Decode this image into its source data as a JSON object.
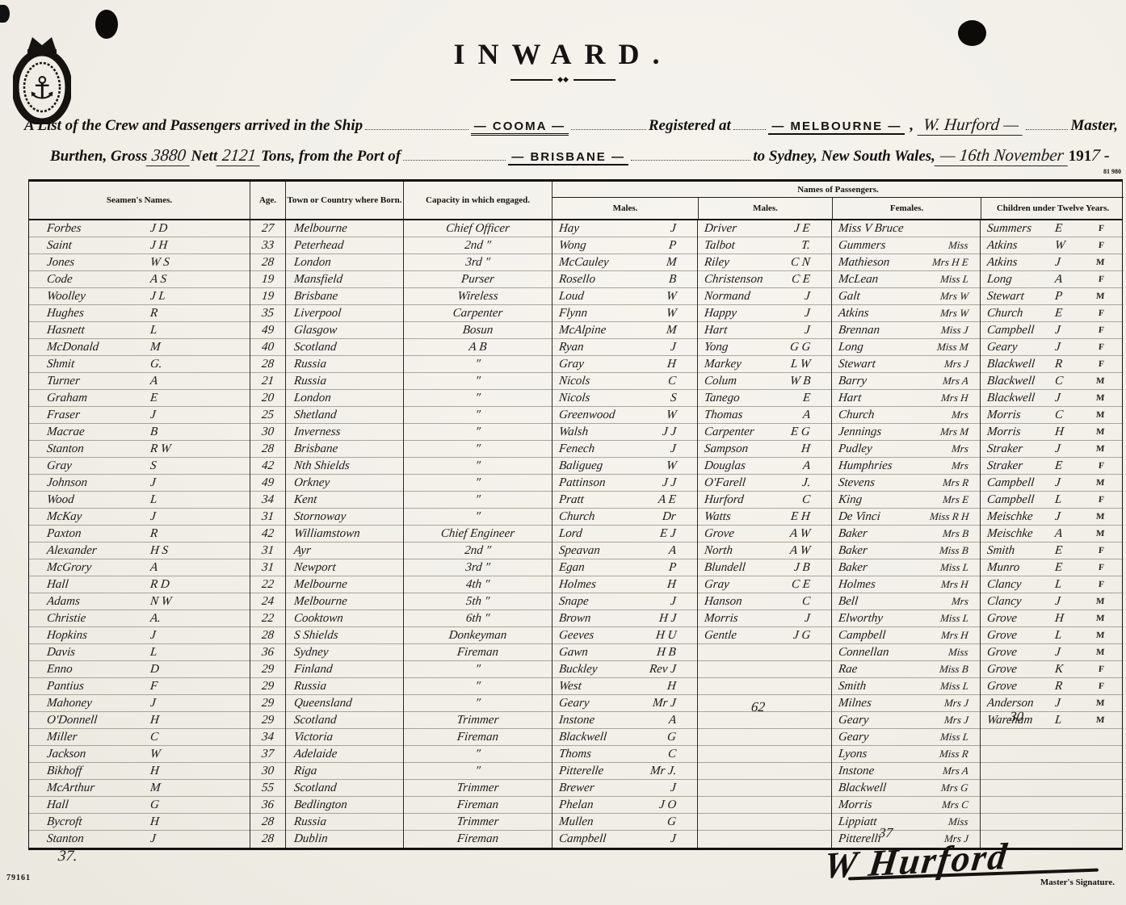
{
  "page": {
    "title": "INWARD.",
    "plate_number": "81 980",
    "form_number": "79161",
    "intro": {
      "line1_prefix": "A List of the Crew and Passengers arrived in the Ship",
      "ship_name": "— COOMA —",
      "registered_at_label": "Registered at",
      "registered_at_value": "— MELBOURNE —",
      "separator_comma": ",",
      "master_name": "W. Hurford —",
      "master_label": "Master,",
      "line2_prefix": "Burthen, Gross",
      "gross_value": "3880",
      "nett_label": "Nett",
      "nett_value": "2121",
      "line2_mid": "Tons, from the Port of",
      "port_value": "— BRISBANE —",
      "line2_dest": "to Sydney, New South Wales,",
      "date_value": "— 16th November",
      "year_printed": "191",
      "year_written": "7 -"
    }
  },
  "table": {
    "headers": {
      "seamen": "Seamen's Names.",
      "age": "Age.",
      "town": "Town or Country where Born.",
      "capacity": "Capacity in which engaged.",
      "passengers_banner": "Names of Passengers.",
      "passenger_sub": [
        "Males.",
        "Males.",
        "Females.",
        "Children under Twelve Years."
      ]
    },
    "crew": [
      {
        "name": "Forbes",
        "initials": "J D",
        "age": "27",
        "born": "Melbourne",
        "capacity": "Chief Officer"
      },
      {
        "name": "Saint",
        "initials": "J H",
        "age": "33",
        "born": "Peterhead",
        "capacity": "2nd ″"
      },
      {
        "name": "Jones",
        "initials": "W S",
        "age": "28",
        "born": "London",
        "capacity": "3rd ″"
      },
      {
        "name": "Code",
        "initials": "A S",
        "age": "19",
        "born": "Mansfield",
        "capacity": "Purser"
      },
      {
        "name": "Woolley",
        "initials": "J L",
        "age": "19",
        "born": "Brisbane",
        "capacity": "Wireless"
      },
      {
        "name": "Hughes",
        "initials": "R",
        "age": "35",
        "born": "Liverpool",
        "capacity": "Carpenter"
      },
      {
        "name": "Hasnett",
        "initials": "L",
        "age": "49",
        "born": "Glasgow",
        "capacity": "Bosun"
      },
      {
        "name": "McDonald",
        "initials": "M",
        "age": "40",
        "born": "Scotland",
        "capacity": "A B"
      },
      {
        "name": "Shmit",
        "initials": "G.",
        "age": "28",
        "born": "Russia",
        "capacity": "″"
      },
      {
        "name": "Turner",
        "initials": "A",
        "age": "21",
        "born": "Russia",
        "capacity": "″"
      },
      {
        "name": "Graham",
        "initials": "E",
        "age": "20",
        "born": "London",
        "capacity": "″"
      },
      {
        "name": "Fraser",
        "initials": "J",
        "age": "25",
        "born": "Shetland",
        "capacity": "″"
      },
      {
        "name": "Macrae",
        "initials": "B",
        "age": "30",
        "born": "Inverness",
        "capacity": "″"
      },
      {
        "name": "Stanton",
        "initials": "R W",
        "age": "28",
        "born": "Brisbane",
        "capacity": "″"
      },
      {
        "name": "Gray",
        "initials": "S",
        "age": "42",
        "born": "Nth Shields",
        "capacity": "″"
      },
      {
        "name": "Johnson",
        "initials": "J",
        "age": "49",
        "born": "Orkney",
        "capacity": "″"
      },
      {
        "name": "Wood",
        "initials": "L",
        "age": "34",
        "born": "Kent",
        "capacity": "″"
      },
      {
        "name": "McKay",
        "initials": "J",
        "age": "31",
        "born": "Stornoway",
        "capacity": "″"
      },
      {
        "name": "Paxton",
        "initials": "R",
        "age": "42",
        "born": "Williamstown",
        "capacity": "Chief Engineer"
      },
      {
        "name": "Alexander",
        "initials": "H S",
        "age": "31",
        "born": "Ayr",
        "capacity": "2nd ″"
      },
      {
        "name": "McGrory",
        "initials": "A",
        "age": "31",
        "born": "Newport",
        "capacity": "3rd ″"
      },
      {
        "name": "Hall",
        "initials": "R D",
        "age": "22",
        "born": "Melbourne",
        "capacity": "4th ″"
      },
      {
        "name": "Adams",
        "initials": "N W",
        "age": "24",
        "born": "Melbourne",
        "capacity": "5th ″"
      },
      {
        "name": "Christie",
        "initials": "A.",
        "age": "22",
        "born": "Cooktown",
        "capacity": "6th ″"
      },
      {
        "name": "Hopkins",
        "initials": "J",
        "age": "28",
        "born": "S Shields",
        "capacity": "Donkeyman"
      },
      {
        "name": "Davis",
        "initials": "L",
        "age": "36",
        "born": "Sydney",
        "capacity": "Fireman"
      },
      {
        "name": "Enno",
        "initials": "D",
        "age": "29",
        "born": "Finland",
        "capacity": "″"
      },
      {
        "name": "Pantius",
        "initials": "F",
        "age": "29",
        "born": "Russia",
        "capacity": "″"
      },
      {
        "name": "Mahoney",
        "initials": "J",
        "age": "29",
        "born": "Queensland",
        "capacity": "″"
      },
      {
        "name": "O'Donnell",
        "initials": "H",
        "age": "29",
        "born": "Scotland",
        "capacity": "Trimmer"
      },
      {
        "name": "Miller",
        "initials": "C",
        "age": "34",
        "born": "Victoria",
        "capacity": "Fireman"
      },
      {
        "name": "Jackson",
        "initials": "W",
        "age": "37",
        "born": "Adelaide",
        "capacity": "″"
      },
      {
        "name": "Bikhoff",
        "initials": "H",
        "age": "30",
        "born": "Riga",
        "capacity": "″"
      },
      {
        "name": "McArthur",
        "initials": "M",
        "age": "55",
        "born": "Scotland",
        "capacity": "Trimmer"
      },
      {
        "name": "Hall",
        "initials": "G",
        "age": "36",
        "born": "Bedlington",
        "capacity": "Fireman"
      },
      {
        "name": "Bycroft",
        "initials": "H",
        "age": "28",
        "born": "Russia",
        "capacity": "Trimmer"
      },
      {
        "name": "Stanton",
        "initials": "J",
        "age": "28",
        "born": "Dublin",
        "capacity": "Fireman"
      }
    ],
    "males1": [
      {
        "name": "Hay",
        "initials": "J"
      },
      {
        "name": "Wong",
        "initials": "P"
      },
      {
        "name": "McCauley",
        "initials": "M"
      },
      {
        "name": "Rosello",
        "initials": "B"
      },
      {
        "name": "Loud",
        "initials": "W"
      },
      {
        "name": "Flynn",
        "initials": "W"
      },
      {
        "name": "McAlpine",
        "initials": "M"
      },
      {
        "name": "Ryan",
        "initials": "J"
      },
      {
        "name": "Gray",
        "initials": "H"
      },
      {
        "name": "Nicols",
        "initials": "C"
      },
      {
        "name": "Nicols",
        "initials": "S"
      },
      {
        "name": "Greenwood",
        "initials": "W"
      },
      {
        "name": "Walsh",
        "initials": "J J"
      },
      {
        "name": "Fenech",
        "initials": "J"
      },
      {
        "name": "Baligueg",
        "initials": "W"
      },
      {
        "name": "Pattinson",
        "initials": "J J"
      },
      {
        "name": "Pratt",
        "initials": "A E"
      },
      {
        "name": "Church",
        "initials": "Dr"
      },
      {
        "name": "Lord",
        "initials": "E J"
      },
      {
        "name": "Speavan",
        "initials": "A"
      },
      {
        "name": "Egan",
        "initials": "P"
      },
      {
        "name": "Holmes",
        "initials": "H"
      },
      {
        "name": "Snape",
        "initials": "J"
      },
      {
        "name": "Brown",
        "initials": "H J"
      },
      {
        "name": "Geeves",
        "initials": "H U"
      },
      {
        "name": "Gawn",
        "initials": "H B"
      },
      {
        "name": "Buckley",
        "initials": "Rev J"
      },
      {
        "name": "West",
        "initials": "H"
      },
      {
        "name": "Geary",
        "initials": "Mr J"
      },
      {
        "name": "Instone",
        "initials": "A"
      },
      {
        "name": "Blackwell",
        "initials": "G"
      },
      {
        "name": "Thoms",
        "initials": "C"
      },
      {
        "name": "Pitterelle",
        "initials": "Mr J."
      },
      {
        "name": "Brewer",
        "initials": "J"
      },
      {
        "name": "Phelan",
        "initials": "J O"
      },
      {
        "name": "Mullen",
        "initials": "G"
      },
      {
        "name": "Campbell",
        "initials": "J"
      }
    ],
    "males2": [
      {
        "name": "Driver",
        "initials": "J E"
      },
      {
        "name": "Talbot",
        "initials": "T."
      },
      {
        "name": "Riley",
        "initials": "C N"
      },
      {
        "name": "Christenson",
        "initials": "C E"
      },
      {
        "name": "Normand",
        "initials": "J"
      },
      {
        "name": "Happy",
        "initials": "J"
      },
      {
        "name": "Hart",
        "initials": "J"
      },
      {
        "name": "Yong",
        "initials": "G G"
      },
      {
        "name": "Markey",
        "initials": "L W"
      },
      {
        "name": "Colum",
        "initials": "W B"
      },
      {
        "name": "Tanego",
        "initials": "E"
      },
      {
        "name": "Thomas",
        "initials": "A"
      },
      {
        "name": "Carpenter",
        "initials": "E G"
      },
      {
        "name": "Sampson",
        "initials": "H"
      },
      {
        "name": "Douglas",
        "initials": "A"
      },
      {
        "name": "O'Farell",
        "initials": "J."
      },
      {
        "name": "Hurford",
        "initials": "C"
      },
      {
        "name": "Watts",
        "initials": "E H"
      },
      {
        "name": "Grove",
        "initials": "A W"
      },
      {
        "name": "North",
        "initials": "A W"
      },
      {
        "name": "Blundell",
        "initials": "J B"
      },
      {
        "name": "Gray",
        "initials": "C E"
      },
      {
        "name": "Hanson",
        "initials": "C"
      },
      {
        "name": "Morris",
        "initials": "J"
      },
      {
        "name": "Gentle",
        "initials": "J G"
      }
    ],
    "females": [
      {
        "name": "Miss V Bruce",
        "title": ""
      },
      {
        "name": "Gummers",
        "title": "Miss"
      },
      {
        "name": "Mathieson",
        "title": "Mrs H E"
      },
      {
        "name": "McLean",
        "title": "Miss L"
      },
      {
        "name": "Galt",
        "title": "Mrs W"
      },
      {
        "name": "Atkins",
        "title": "Mrs W"
      },
      {
        "name": "Brennan",
        "title": "Miss J"
      },
      {
        "name": "Long",
        "title": "Miss M"
      },
      {
        "name": "Stewart",
        "title": "Mrs J"
      },
      {
        "name": "Barry",
        "title": "Mrs A"
      },
      {
        "name": "Hart",
        "title": "Mrs H"
      },
      {
        "name": "Church",
        "title": "Mrs"
      },
      {
        "name": "Jennings",
        "title": "Mrs M"
      },
      {
        "name": "Pudley",
        "title": "Mrs"
      },
      {
        "name": "Humphries",
        "title": "Mrs"
      },
      {
        "name": "Stevens",
        "title": "Mrs R"
      },
      {
        "name": "King",
        "title": "Mrs E"
      },
      {
        "name": "De Vinci",
        "title": "Miss R H"
      },
      {
        "name": "Baker",
        "title": "Mrs B"
      },
      {
        "name": "Baker",
        "title": "Miss B"
      },
      {
        "name": "Baker",
        "title": "Miss L"
      },
      {
        "name": "Holmes",
        "title": "Mrs H"
      },
      {
        "name": "Bell",
        "title": "Mrs"
      },
      {
        "name": "Elworthy",
        "title": "Miss L"
      },
      {
        "name": "Campbell",
        "title": "Mrs H"
      },
      {
        "name": "Connellan",
        "title": "Miss"
      },
      {
        "name": "Rae",
        "title": "Miss B"
      },
      {
        "name": "Smith",
        "title": "Miss L"
      },
      {
        "name": "Milnes",
        "title": "Mrs J"
      },
      {
        "name": "Geary",
        "title": "Mrs J"
      },
      {
        "name": "Geary",
        "title": "Miss L"
      },
      {
        "name": "Lyons",
        "title": "Miss R"
      },
      {
        "name": "Instone",
        "title": "Mrs A"
      },
      {
        "name": "Blackwell",
        "title": "Mrs G"
      },
      {
        "name": "Morris",
        "title": "Mrs C"
      },
      {
        "name": "Lippiatt",
        "title": "Miss"
      },
      {
        "name": "Pitterelli",
        "title": "Mrs J"
      }
    ],
    "children": [
      {
        "name": "Summers",
        "initial": "E",
        "sex": "F"
      },
      {
        "name": "Atkins",
        "initial": "W",
        "sex": "F"
      },
      {
        "name": "Atkins",
        "initial": "J",
        "sex": "M"
      },
      {
        "name": "Long",
        "initial": "A",
        "sex": "F"
      },
      {
        "name": "Stewart",
        "initial": "P",
        "sex": "M"
      },
      {
        "name": "Church",
        "initial": "E",
        "sex": "F"
      },
      {
        "name": "Campbell",
        "initial": "J",
        "sex": "F"
      },
      {
        "name": "Geary",
        "initial": "J",
        "sex": "F"
      },
      {
        "name": "Blackwell",
        "initial": "R",
        "sex": "F"
      },
      {
        "name": "Blackwell",
        "initial": "C",
        "sex": "M"
      },
      {
        "name": "Blackwell",
        "initial": "J",
        "sex": "M"
      },
      {
        "name": "Morris",
        "initial": "C",
        "sex": "M"
      },
      {
        "name": "Morris",
        "initial": "H",
        "sex": "M"
      },
      {
        "name": "Straker",
        "initial": "J",
        "sex": "M"
      },
      {
        "name": "Straker",
        "initial": "E",
        "sex": "F"
      },
      {
        "name": "Campbell",
        "initial": "J",
        "sex": "M"
      },
      {
        "name": "Campbell",
        "initial": "L",
        "sex": "F"
      },
      {
        "name": "Meischke",
        "initial": "J",
        "sex": "M"
      },
      {
        "name": "Meischke",
        "initial": "A",
        "sex": "M"
      },
      {
        "name": "Smith",
        "initial": "E",
        "sex": "F"
      },
      {
        "name": "Munro",
        "initial": "E",
        "sex": "F"
      },
      {
        "name": "Clancy",
        "initial": "L",
        "sex": "F"
      },
      {
        "name": "Clancy",
        "initial": "J",
        "sex": "M"
      },
      {
        "name": "Grove",
        "initial": "H",
        "sex": "M"
      },
      {
        "name": "Grove",
        "initial": "L",
        "sex": "M"
      },
      {
        "name": "Grove",
        "initial": "J",
        "sex": "M"
      },
      {
        "name": "Grove",
        "initial": "K",
        "sex": "F"
      },
      {
        "name": "Grove",
        "initial": "R",
        "sex": "F"
      },
      {
        "name": "Anderson",
        "initial": "J",
        "sex": "M"
      },
      {
        "name": "Wareham",
        "initial": "L",
        "sex": "M"
      }
    ],
    "totals": {
      "crew_total": "37.",
      "males_total": "62",
      "females_total": "37",
      "children_total": "30"
    }
  },
  "footer": {
    "signature": "W Hurford",
    "signature_label": "Master's Signature."
  }
}
